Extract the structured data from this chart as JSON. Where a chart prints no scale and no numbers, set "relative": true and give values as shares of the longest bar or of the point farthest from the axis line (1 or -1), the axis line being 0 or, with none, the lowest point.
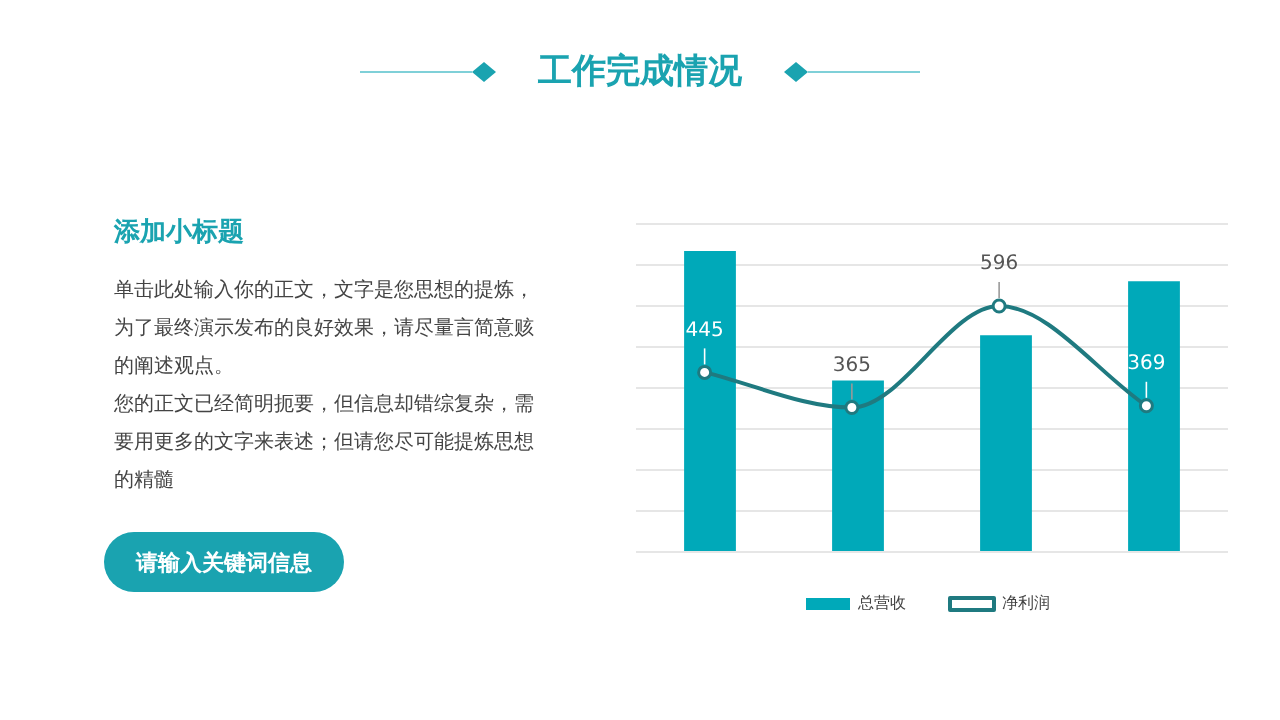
{
  "chart_data": [
    {
      "type": "other",
      "title": "添加小标题",
      "annotations": [
        "单击此处输入你的正文，文字是您思想的提炼，为了最终演示发布的良好效果，请尽量言简意赅的阐述观点。",
        "您的正文已经简明扼要，但信息却错综复杂，需要用更多的文字来表述；但请您尽可能提炼思想的精髓",
        "请输入关键词信息"
      ]
    },
    {
      "type": "bar",
      "title": "工作完成情况",
      "categories": [
        null,
        null,
        null,
        null
      ],
      "relative": true,
      "grid": "y",
      "legend": "bottom",
      "series": [
        {
          "name": "总营收",
          "color": "#00a9b9",
          "values": [
            1,
            0.57,
            0.72,
            0.9
          ]
        }
      ]
    },
    {
      "type": "line",
      "categories": [
        null,
        null,
        null,
        null
      ],
      "data_labels": true,
      "legend": "bottom",
      "marker": "circle",
      "series": [
        {
          "name": "净利润",
          "color": "#1f7a80",
          "values": [
            445,
            365,
            596,
            369
          ]
        }
      ]
    }
  ]
}
